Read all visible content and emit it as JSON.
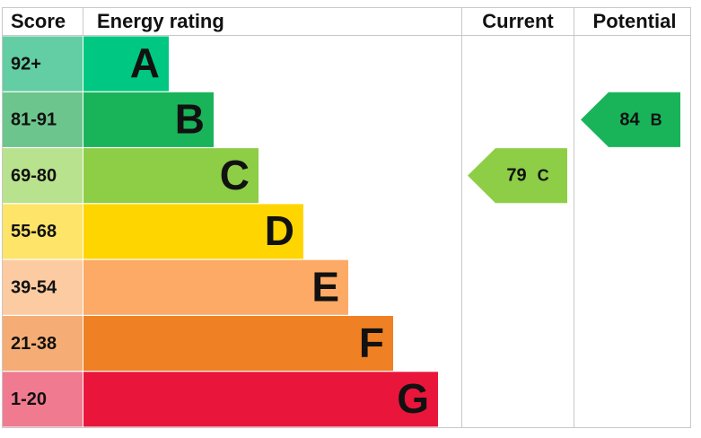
{
  "header": {
    "score": "Score",
    "rating": "Energy rating",
    "current": "Current",
    "potential": "Potential"
  },
  "bands": [
    {
      "score": "92+",
      "letter": "A",
      "color": "#00c781",
      "score_color": "#63cda4"
    },
    {
      "score": "81-91",
      "letter": "B",
      "color": "#19b459",
      "score_color": "#6cc58c"
    },
    {
      "score": "69-80",
      "letter": "C",
      "color": "#8dce46",
      "score_color": "#b8e28e"
    },
    {
      "score": "55-68",
      "letter": "D",
      "color": "#ffd500",
      "score_color": "#ffe46a"
    },
    {
      "score": "39-54",
      "letter": "E",
      "color": "#fcaa65",
      "score_color": "#fdcba2"
    },
    {
      "score": "21-38",
      "letter": "F",
      "color": "#ef8023",
      "score_color": "#f5ad75"
    },
    {
      "score": "1-20",
      "letter": "G",
      "color": "#e9153b",
      "score_color": "#f07a90"
    }
  ],
  "current": {
    "value": 79,
    "letter": "C"
  },
  "potential": {
    "value": 84,
    "letter": "B"
  }
}
